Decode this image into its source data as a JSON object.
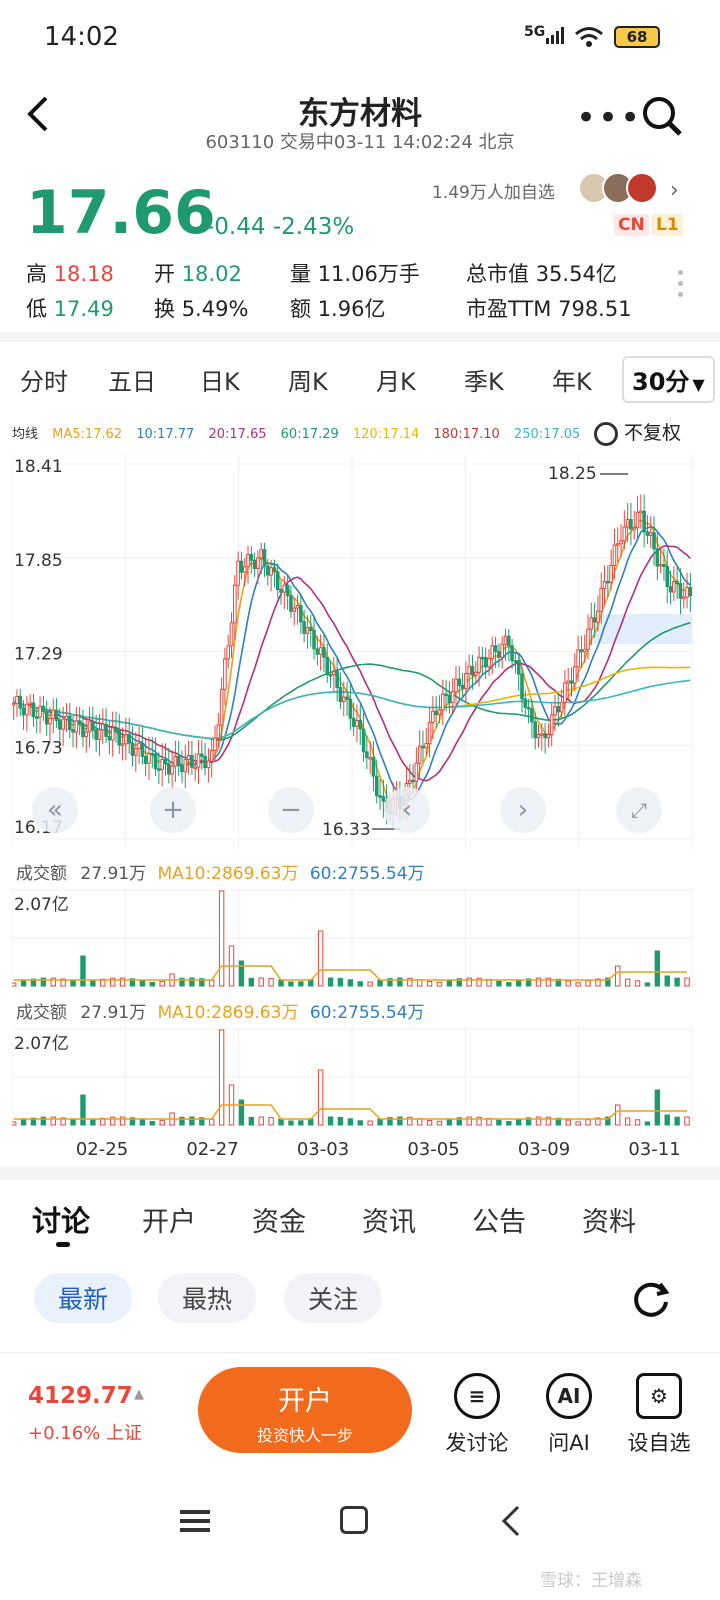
{
  "status_bar": {
    "time": "14:02",
    "network": "5G",
    "battery": "68"
  },
  "header": {
    "title": "东方材料",
    "subtitle": "603110 交易中03-11 14:02:24 北京",
    "followers": "1.49万人加自选",
    "badge_cn": "CN",
    "badge_l1": "L1"
  },
  "quote": {
    "price": "17.66",
    "change": "-0.44",
    "change_pct": "-2.43%",
    "high_label": "高",
    "high": "18.18",
    "low_label": "低",
    "low": "17.49",
    "open_label": "开",
    "open": "18.02",
    "turnover_label": "换",
    "turnover": "5.49%",
    "volume_label": "量",
    "volume": "11.06万手",
    "amount_label": "额",
    "amount": "1.96亿",
    "market_cap_label": "总市值",
    "market_cap": "35.54亿",
    "pe_label": "市盈TTM",
    "pe": "798.51"
  },
  "period_tabs": [
    "分时",
    "五日",
    "日K",
    "周K",
    "月K",
    "季K",
    "年K",
    "30分"
  ],
  "ma_line": {
    "label": "均线",
    "items": [
      {
        "text": "MA5:17.62",
        "color": "#e8a21c"
      },
      {
        "text": "10:17.77",
        "color": "#2f7fc1"
      },
      {
        "text": "20:17.65",
        "color": "#b0307a"
      },
      {
        "text": "60:17.29",
        "color": "#1f9a6e"
      },
      {
        "text": "120:17.14",
        "color": "#e6b800"
      },
      {
        "text": "180:17.10",
        "color": "#c0392b"
      },
      {
        "text": "250:17.05",
        "color": "#37b7c8"
      }
    ],
    "restore": "不复权"
  },
  "chart_data": [
    {
      "type": "candlestick",
      "y_ticks": [
        "18.41",
        "17.85",
        "17.29",
        "16.73",
        "16.17"
      ],
      "ylim": [
        16.17,
        18.41
      ],
      "annotations": [
        {
          "label": "18.25"
        },
        {
          "label": "16.33"
        }
      ],
      "x_ticks": [
        "02-25",
        "02-27",
        "03-03",
        "03-05",
        "03-09",
        "03-11"
      ]
    },
    {
      "type": "bar",
      "title": "成交额",
      "current": "27.91万",
      "ma10": "MA10:2869.63万",
      "ma60": "60:2755.54万",
      "ymax_label": "2.07亿"
    },
    {
      "type": "bar",
      "title": "成交额",
      "current": "27.91万",
      "ma10": "MA10:2869.63万",
      "ma60": "60:2755.54万",
      "ymax_label": "2.07亿"
    }
  ],
  "content_tabs": [
    "讨论",
    "开户",
    "资金",
    "资讯",
    "公告",
    "资料"
  ],
  "filter_pills": [
    "最新",
    "最热",
    "关注"
  ],
  "bottom_bar": {
    "index_value": "4129.77",
    "index_change": "+0.16% 上证",
    "open_account": "开户",
    "open_account_sub": "投资快人一步",
    "actions": [
      "发讨论",
      "问AI",
      "设自选"
    ]
  },
  "watermark": "雪球：王增森",
  "colors": {
    "up": "#e8473b",
    "down": "#1f9a6e",
    "accent": "#f26a1b"
  }
}
